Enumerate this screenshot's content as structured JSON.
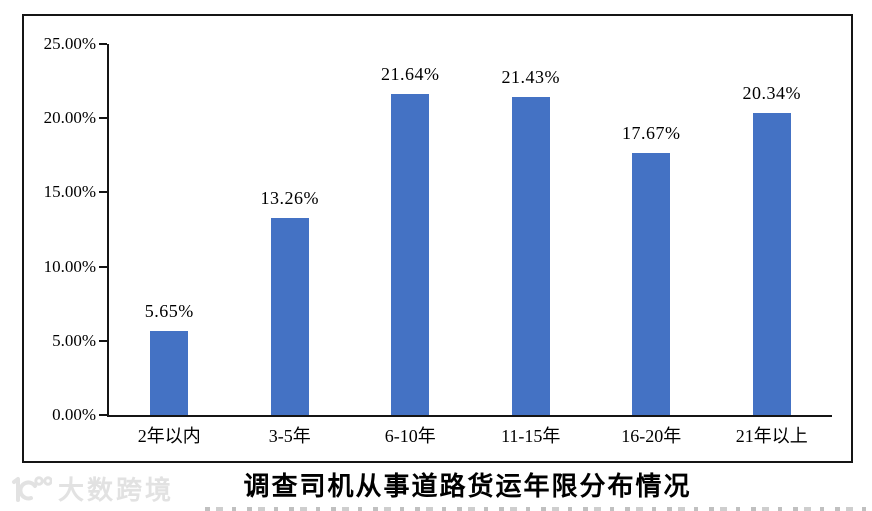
{
  "chart_data": {
    "type": "bar",
    "title": "调查司机从事道路货运年限分布情况",
    "categories": [
      "2年以内",
      "3-5年",
      "6-10年",
      "11-15年",
      "16-20年",
      "21年以上"
    ],
    "values": [
      5.65,
      13.26,
      21.64,
      21.43,
      17.67,
      20.34
    ],
    "data_labels": [
      "5.65%",
      "13.26%",
      "21.64%",
      "21.43%",
      "17.67%",
      "20.34%"
    ],
    "y_ticks": [
      "25.00%",
      "20.00%",
      "15.00%",
      "10.00%",
      "5.00%",
      "0.00%"
    ],
    "ylim": [
      0,
      25
    ],
    "xlabel": "",
    "ylabel": "",
    "grid": false,
    "legend": "none",
    "bar_color": "#4472C4",
    "axis_color": "#151515"
  },
  "watermark": {
    "logo_icon": "10100-logo",
    "text": "大数跨境"
  }
}
